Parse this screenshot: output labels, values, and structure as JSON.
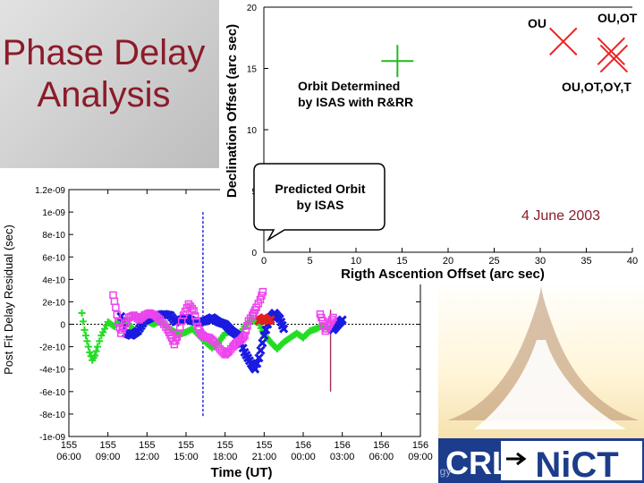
{
  "title": "Phase Delay Analysis",
  "date_label": "4 June 2003",
  "logo": {
    "left_text": "CRL",
    "right_text": "NiCT",
    "fragment": "gy"
  },
  "chart_data": [
    {
      "type": "scatter",
      "xlabel": "Time (UT)",
      "ylabel": "Post Fit Delay Residual (sec)",
      "ylim": [
        -1e-09,
        1.2e-09
      ],
      "y_ticks": [
        "1.2e-09",
        "1e-09",
        "8e-10",
        "6e-10",
        "4e-10",
        "2e-10",
        "0",
        "-2e-10",
        "-4e-10",
        "-6e-10",
        "-8e-10",
        "-1e-09"
      ],
      "y_tick_values": [
        1.2e-09,
        1e-09,
        8e-10,
        6e-10,
        4e-10,
        2e-10,
        0,
        -2e-10,
        -4e-10,
        -6e-10,
        -8e-10,
        -1e-09
      ],
      "x_ticks": [
        {
          "day": "155",
          "time": "06:00"
        },
        {
          "day": "155",
          "time": "09:00"
        },
        {
          "day": "155",
          "time": "12:00"
        },
        {
          "day": "155",
          "time": "15:00"
        },
        {
          "day": "155",
          "time": "18:00"
        },
        {
          "day": "155",
          "time": "21:00"
        },
        {
          "day": "156",
          "time": "00:00"
        },
        {
          "day": "156",
          "time": "03:00"
        },
        {
          "day": "156",
          "time": "06:00"
        },
        {
          "day": "156",
          "time": "09:00"
        }
      ],
      "xlim_hours": [
        0,
        27
      ],
      "series": [
        {
          "color": "#22dd22",
          "marker": "plus",
          "points": [
            [
              1.0,
              1e-10
            ],
            [
              1.2,
              -5e-11
            ],
            [
              1.4,
              -1.5e-10
            ],
            [
              1.6,
              -2.5e-10
            ],
            [
              1.8,
              -3.2e-10
            ],
            [
              2.0,
              -2.8e-10
            ],
            [
              2.2,
              -2e-10
            ],
            [
              2.5,
              -1e-10
            ],
            [
              3.0,
              2e-11
            ],
            [
              3.5,
              -2e-11
            ],
            [
              4.0,
              4e-11
            ],
            [
              4.5,
              2e-11
            ],
            [
              5.0,
              -6e-11
            ],
            [
              5.3,
              -8e-11
            ],
            [
              5.7,
              1e-11
            ],
            [
              6.0,
              3e-11
            ],
            [
              6.5,
              0.0
            ],
            [
              7.0,
              3e-11
            ],
            [
              8.0,
              -6e-11
            ],
            [
              8.5,
              -9e-11
            ],
            [
              9.0,
              -7e-11
            ],
            [
              9.5,
              -4e-11
            ],
            [
              10.0,
              -1e-10
            ],
            [
              10.5,
              -1.6e-10
            ],
            [
              11.0,
              -2.1e-10
            ],
            [
              11.5,
              -1.6e-10
            ],
            [
              12.0,
              -8e-11
            ],
            [
              12.5,
              -6e-11
            ],
            [
              13.0,
              -1.1e-10
            ],
            [
              13.5,
              -2e-11
            ],
            [
              14.0,
              4e-11
            ],
            [
              14.5,
              2e-11
            ],
            [
              15.0,
              -9e-11
            ],
            [
              15.5,
              -1.6e-10
            ],
            [
              16.0,
              -2.2e-10
            ],
            [
              16.5,
              -1.6e-10
            ],
            [
              17.0,
              -1.2e-10
            ],
            [
              17.5,
              -8e-11
            ],
            [
              18.0,
              -1.2e-10
            ],
            [
              18.5,
              -6e-11
            ],
            [
              19.0,
              -4e-11
            ],
            [
              19.5,
              -1e-11
            ],
            [
              20.0,
              -4e-11
            ],
            [
              20.5,
              -2e-11
            ],
            [
              21.0,
              1e-11
            ]
          ]
        },
        {
          "color": "#1a1ae0",
          "marker": "cross",
          "points": [
            [
              4.0,
              7e-11
            ],
            [
              4.4,
              -8e-11
            ],
            [
              4.8,
              -1e-10
            ],
            [
              5.3,
              -6e-11
            ],
            [
              5.8,
              3e-11
            ],
            [
              6.3,
              6e-11
            ],
            [
              6.8,
              8e-11
            ],
            [
              7.3,
              9e-11
            ],
            [
              7.8,
              8e-11
            ],
            [
              8.2,
              2e-11
            ],
            [
              8.6,
              4e-11
            ],
            [
              9.0,
              6e-11
            ],
            [
              9.5,
              3e-11
            ],
            [
              10.0,
              2e-11
            ],
            [
              10.5,
              3e-11
            ],
            [
              11.0,
              6e-11
            ],
            [
              11.5,
              2e-11
            ],
            [
              12.0,
              0.0
            ],
            [
              12.5,
              -6e-11
            ],
            [
              13.0,
              -1e-10
            ],
            [
              13.5,
              -2.5e-10
            ],
            [
              14.0,
              -3.5e-10
            ],
            [
              14.3,
              -4e-10
            ],
            [
              14.6,
              -3e-10
            ],
            [
              15.0,
              -1e-10
            ],
            [
              15.4,
              5e-11
            ],
            [
              15.8,
              1e-10
            ],
            [
              16.2,
              5e-11
            ],
            [
              16.5,
              -4e-11
            ],
            [
              20.3,
              -5e-11
            ],
            [
              20.6,
              -1e-11
            ],
            [
              21.0,
              4e-11
            ]
          ]
        },
        {
          "color": "#e02020",
          "marker": "cross",
          "points": [
            [
              14.6,
              3e-11
            ],
            [
              15.0,
              6e-11
            ],
            [
              15.3,
              3e-11
            ],
            [
              15.5,
              4e-11
            ]
          ]
        },
        {
          "color": "#ee44ee",
          "marker": "square",
          "points": [
            [
              3.4,
              2.6e-10
            ],
            [
              3.6,
              1.5e-10
            ],
            [
              3.8,
              2e-11
            ],
            [
              4.0,
              -8e-11
            ],
            [
              4.2,
              -2e-11
            ],
            [
              4.6,
              6e-11
            ],
            [
              5.0,
              8e-11
            ],
            [
              5.4,
              4e-11
            ],
            [
              5.8,
              8e-11
            ],
            [
              6.2,
              1e-10
            ],
            [
              6.6,
              8e-11
            ],
            [
              7.0,
              4e-11
            ],
            [
              7.3,
              0.0
            ],
            [
              7.6,
              -5e-11
            ],
            [
              7.9,
              -1.2e-10
            ],
            [
              8.1,
              -1.8e-10
            ],
            [
              8.4,
              -8e-11
            ],
            [
              8.8,
              8e-11
            ],
            [
              9.2,
              1.8e-10
            ],
            [
              9.6,
              1.2e-10
            ],
            [
              9.9,
              -2e-11
            ],
            [
              10.1,
              -8e-11
            ],
            [
              10.4,
              -1.1e-10
            ],
            [
              10.8,
              -1.2e-10
            ],
            [
              11.2,
              -1.6e-10
            ],
            [
              11.6,
              -2.2e-10
            ],
            [
              12.0,
              -2.7e-10
            ],
            [
              12.3,
              -2.4e-10
            ],
            [
              12.6,
              -2e-10
            ],
            [
              12.9,
              -1.6e-10
            ],
            [
              13.2,
              -1.4e-10
            ],
            [
              13.5,
              -1e-10
            ],
            [
              13.8,
              3e-11
            ],
            [
              14.1,
              8e-11
            ],
            [
              14.4,
              1.5e-10
            ],
            [
              14.7,
              2.2e-10
            ],
            [
              14.9,
              2.9e-10
            ],
            [
              19.3,
              9e-11
            ],
            [
              19.5,
              3e-11
            ],
            [
              19.7,
              -6e-11
            ],
            [
              19.9,
              -2e-11
            ],
            [
              20.1,
              2e-11
            ],
            [
              20.3,
              6e-11
            ]
          ]
        }
      ],
      "spikes": [
        {
          "x": 10.3,
          "y0": 1e-09,
          "y1": -8.2e-10,
          "color": "#1a1ae0",
          "dashed": true
        },
        {
          "x": 20.1,
          "y0": 1.3e-10,
          "y1": -6e-10,
          "color": "#a03050",
          "dashed": false
        }
      ]
    },
    {
      "type": "scatter",
      "xlabel": "Rigth Ascention Offset (arc sec)",
      "ylabel": "Declination Offset (arc sec)",
      "xlim": [
        0,
        40
      ],
      "ylim": [
        0,
        20
      ],
      "x_ticks": [
        0,
        5,
        10,
        15,
        20,
        25,
        30,
        35,
        40
      ],
      "y_ticks": [
        0,
        5,
        10,
        15,
        20
      ],
      "annotations": [
        {
          "text": "Orbit Determined by ISAS with R&RR",
          "lines": [
            "Orbit Determined",
            "by ISAS with R&RR"
          ],
          "kind": "text"
        },
        {
          "text": "Predicted Orbit by ISAS",
          "lines": [
            "Predicted Orbit",
            "by ISAS"
          ],
          "kind": "callout"
        },
        {
          "text": "OU",
          "kind": "text"
        },
        {
          "text": "OU,OT",
          "kind": "text"
        },
        {
          "text": "OU,OT,OY,T",
          "kind": "text"
        }
      ],
      "points": [
        {
          "x": 0,
          "y": 0,
          "marker": "none",
          "label": "Predicted Orbit by ISAS"
        },
        {
          "x": 14.5,
          "y": 15.6,
          "marker": "plus",
          "color": "#22bb22",
          "label": "Orbit Determined by ISAS with R&RR"
        },
        {
          "x": 32.5,
          "y": 17.2,
          "marker": "x",
          "color": "#ee2222",
          "label": "OU"
        },
        {
          "x": 37.7,
          "y": 16.4,
          "marker": "x",
          "color": "#ee2222",
          "label": "OU,OT"
        },
        {
          "x": 38.0,
          "y": 15.8,
          "marker": "x",
          "color": "#ee2222",
          "label": "OU,OT,OY,T"
        }
      ]
    }
  ]
}
